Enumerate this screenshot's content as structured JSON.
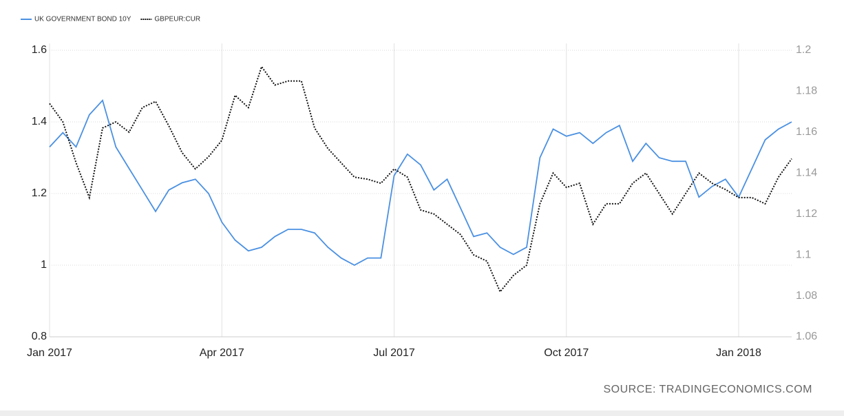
{
  "chart_data": {
    "type": "line",
    "categories": [
      "Jan 2017",
      null,
      null,
      null,
      null,
      null,
      null,
      null,
      null,
      null,
      null,
      null,
      null,
      "Apr 2017",
      null,
      null,
      null,
      null,
      null,
      null,
      null,
      null,
      null,
      null,
      null,
      null,
      "Jul 2017",
      null,
      null,
      null,
      null,
      null,
      null,
      null,
      null,
      null,
      null,
      null,
      null,
      "Oct 2017",
      null,
      null,
      null,
      null,
      null,
      null,
      null,
      null,
      null,
      null,
      null,
      null,
      "Jan 2018",
      null,
      null,
      null,
      null
    ],
    "series": [
      {
        "name": "UK GOVERNMENT BOND 10Y",
        "color": "#4a90e2",
        "line_style": "solid",
        "values": [
          1.33,
          1.37,
          1.33,
          1.42,
          1.46,
          1.33,
          1.27,
          1.21,
          1.15,
          1.21,
          1.23,
          1.24,
          1.2,
          1.12,
          1.07,
          1.04,
          1.05,
          1.08,
          1.1,
          1.1,
          1.09,
          1.05,
          1.02,
          1.0,
          1.02,
          1.02,
          1.25,
          1.31,
          1.28,
          1.21,
          1.24,
          1.16,
          1.08,
          1.09,
          1.05,
          1.03,
          1.05,
          1.3,
          1.38,
          1.36,
          1.37,
          1.34,
          1.37,
          1.39,
          1.29,
          1.34,
          1.3,
          1.29,
          1.29,
          1.19,
          1.22,
          1.24,
          1.19,
          1.27,
          1.35,
          1.38,
          1.4
        ]
      },
      {
        "name": "GBPEUR:CUR",
        "color": "#111111",
        "line_style": "dotted",
        "axis": "y2",
        "values": [
          1.174,
          1.165,
          1.145,
          1.128,
          1.162,
          1.165,
          1.16,
          1.172,
          1.175,
          1.163,
          1.15,
          1.142,
          1.148,
          1.156,
          1.178,
          1.172,
          1.192,
          1.183,
          1.185,
          1.185,
          1.162,
          1.152,
          1.145,
          1.138,
          1.137,
          1.135,
          1.142,
          1.138,
          1.122,
          1.12,
          1.115,
          1.11,
          1.1,
          1.097,
          1.082,
          1.09,
          1.095,
          1.125,
          1.14,
          1.133,
          1.135,
          1.115,
          1.125,
          1.125,
          1.135,
          1.14,
          1.13,
          1.12,
          1.13,
          1.14,
          1.135,
          1.132,
          1.128,
          1.128,
          1.125,
          1.138,
          1.147
        ]
      }
    ],
    "ylim": [
      0.8,
      1.6
    ],
    "yticks": [
      0.8,
      1,
      1.2,
      1.4,
      1.6
    ],
    "y2lim": [
      1.06,
      1.2
    ],
    "y2ticks": [
      1.06,
      1.08,
      1.1,
      1.12,
      1.14,
      1.16,
      1.18,
      1.2
    ],
    "grid": true,
    "legend": "top-left",
    "source": "SOURCE: TRADINGECONOMICS.COM"
  }
}
